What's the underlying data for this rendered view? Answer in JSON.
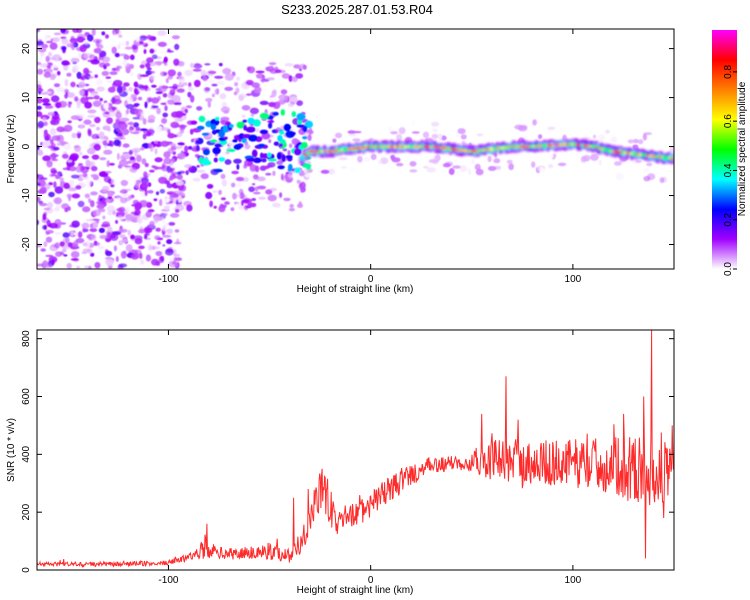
{
  "figure": {
    "title": "S233.2025.287.01.53.R04"
  },
  "chart_data": [
    {
      "type": "heatmap",
      "xlabel": "Height of straight line (km)",
      "ylabel": "Frequency (Hz)",
      "xlim": [
        -165,
        150
      ],
      "ylim": [
        -25,
        24
      ],
      "xticks": [
        -100,
        0,
        100
      ],
      "xtick_labels": [
        "-100",
        "0",
        "100"
      ],
      "yticks": [
        -20,
        -10,
        0,
        10,
        20
      ],
      "ytick_labels": [
        "-20",
        "-10",
        "0",
        "10",
        "20"
      ],
      "colorbar": {
        "label": "Normalized spectral amplitude",
        "range": [
          0,
          0.97
        ],
        "ticks": [
          0.0,
          0.2,
          0.4,
          0.6,
          0.8
        ],
        "tick_labels": [
          "0.0",
          "0.2",
          "0.4",
          "0.6",
          "0.8"
        ],
        "stops": [
          "#ffffff",
          "#a000ff",
          "#0000ff",
          "#00ffff",
          "#00ff00",
          "#ffff00",
          "#ff8000",
          "#ff0000",
          "#ff00ff"
        ]
      },
      "trace": {
        "x": [
          -34,
          -30,
          -20,
          -10,
          0,
          10,
          20,
          30,
          40,
          50,
          60,
          70,
          80,
          90,
          100,
          110,
          120,
          130,
          140,
          150
        ],
        "y": [
          -2.5,
          -1,
          -1,
          -0.5,
          0,
          0,
          0,
          0,
          -0.5,
          -1,
          -0.5,
          0,
          0,
          0.3,
          0.5,
          0,
          -1,
          -1.5,
          -2,
          -2.5
        ]
      }
    },
    {
      "type": "line",
      "xlabel": "Height of straight line (km)",
      "ylabel": "SNR (10 * v/v)",
      "xlim": [
        -165,
        150
      ],
      "ylim": [
        0,
        830
      ],
      "xticks": [
        -100,
        0,
        100
      ],
      "xtick_labels": [
        "-100",
        "0",
        "100"
      ],
      "yticks": [
        0,
        200,
        400,
        600,
        800
      ],
      "ytick_labels": [
        "0",
        "200",
        "400",
        "600",
        "800"
      ],
      "color": "#ff2a2a",
      "series": [
        {
          "x": [
            -165,
            -150,
            -130,
            -110,
            -100,
            -95,
            -90,
            -85,
            -82,
            -80,
            -75,
            -70,
            -60,
            -50,
            -40,
            -35,
            -30,
            -25,
            -20,
            -17,
            -15,
            -10,
            -5,
            0,
            5,
            10,
            20,
            30,
            40,
            50,
            60,
            70,
            80,
            90,
            100,
            110,
            120,
            130,
            140,
            150
          ],
          "y": [
            20,
            20,
            20,
            22,
            25,
            35,
            45,
            60,
            80,
            70,
            60,
            55,
            60,
            65,
            50,
            90,
            180,
            280,
            220,
            150,
            180,
            190,
            200,
            220,
            260,
            280,
            330,
            360,
            370,
            380,
            380,
            375,
            370,
            370,
            370,
            370,
            360,
            350,
            340,
            330
          ],
          "spread": [
            8,
            8,
            8,
            8,
            8,
            10,
            12,
            20,
            45,
            30,
            20,
            20,
            25,
            30,
            25,
            40,
            60,
            90,
            80,
            40,
            40,
            40,
            45,
            45,
            45,
            45,
            40,
            30,
            25,
            40,
            70,
            80,
            80,
            80,
            85,
            90,
            100,
            120,
            120,
            100
          ],
          "spikes": [
            [
              -81,
              160
            ],
            [
              -38,
              250
            ],
            [
              -31,
              280
            ],
            [
              -24,
              350
            ],
            [
              55,
              540
            ],
            [
              67,
              670
            ],
            [
              73,
              520
            ],
            [
              125,
              540
            ],
            [
              135,
              600
            ],
            [
              139,
              830
            ],
            [
              136,
              40
            ],
            [
              145,
              180
            ],
            [
              149,
              500
            ]
          ]
        }
      ]
    }
  ]
}
